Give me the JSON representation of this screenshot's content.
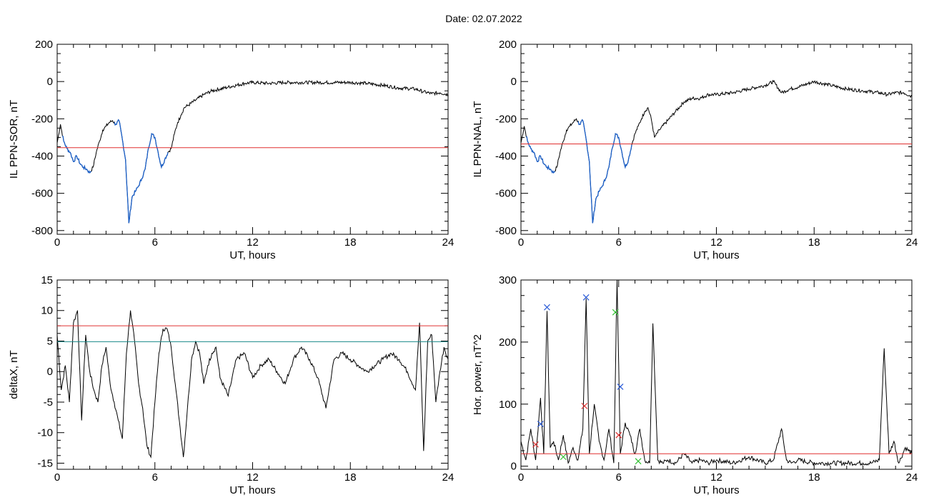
{
  "header": {
    "date_text": "Date:  02.07.2022"
  },
  "colors": {
    "trace": "#000000",
    "highlight": "#1a5fc8",
    "threshold_red": "#e03030",
    "threshold_teal": "#1a8a8a",
    "marker_blue": "#2a5bd7",
    "marker_red": "#e03030",
    "marker_green": "#30c030"
  },
  "chart_data": [
    {
      "type": "line",
      "ylabel": "IL PPN-SOR, nT",
      "xlabel": "UT, hours",
      "xlim": [
        0,
        24
      ],
      "ylim": [
        -820,
        200
      ],
      "xticks": [
        0,
        6,
        12,
        18,
        24
      ],
      "yticks": [
        -800,
        -600,
        -400,
        -200,
        0,
        200
      ],
      "x": [
        0,
        0.2,
        0.4,
        0.6,
        0.8,
        1.0,
        1.2,
        1.4,
        1.6,
        1.8,
        2.0,
        2.2,
        2.4,
        2.6,
        2.8,
        3.0,
        3.2,
        3.4,
        3.6,
        3.8,
        4.0,
        4.2,
        4.4,
        4.6,
        4.8,
        5.0,
        5.2,
        5.4,
        5.6,
        5.8,
        6.0,
        6.2,
        6.4,
        6.6,
        6.8,
        7.0,
        7.2,
        7.4,
        7.6,
        7.8,
        8.0,
        8.5,
        9.0,
        9.5,
        10.0,
        10.5,
        11.0,
        11.5,
        12.0,
        13.0,
        14.0,
        15.0,
        16.0,
        17.0,
        18.0,
        19.0,
        20.0,
        21.0,
        22.0,
        22.5,
        23.0,
        23.5,
        24.0
      ],
      "y": [
        -330,
        -230,
        -320,
        -360,
        -380,
        -430,
        -400,
        -440,
        -460,
        -470,
        -490,
        -460,
        -380,
        -320,
        -260,
        -240,
        -220,
        -210,
        -230,
        -210,
        -310,
        -420,
        -760,
        -620,
        -590,
        -560,
        -520,
        -470,
        -360,
        -280,
        -300,
        -380,
        -460,
        -420,
        -380,
        -360,
        -280,
        -220,
        -180,
        -140,
        -130,
        -100,
        -70,
        -50,
        -40,
        -30,
        -20,
        -10,
        -5,
        -10,
        -5,
        -5,
        -5,
        -5,
        -5,
        -10,
        -20,
        -35,
        -40,
        -55,
        -65,
        -60,
        -70
      ],
      "highlight": {
        "label": "",
        "x_ranges": [
          [
            0.3,
            2.1
          ],
          [
            3.5,
            6.8
          ]
        ]
      },
      "threshold_red": -355
    },
    {
      "type": "line",
      "ylabel": "IL PPN-NAL, nT",
      "xlabel": "UT, hours",
      "xlim": [
        0,
        24
      ],
      "ylim": [
        -820,
        200
      ],
      "xticks": [
        0,
        6,
        12,
        18,
        24
      ],
      "yticks": [
        -800,
        -600,
        -400,
        -200,
        0,
        200
      ],
      "x": [
        0,
        0.2,
        0.4,
        0.6,
        0.8,
        1.0,
        1.2,
        1.4,
        1.6,
        1.8,
        2.0,
        2.2,
        2.4,
        2.6,
        2.8,
        3.0,
        3.2,
        3.4,
        3.6,
        3.8,
        4.0,
        4.2,
        4.4,
        4.6,
        4.8,
        5.0,
        5.2,
        5.4,
        5.6,
        5.8,
        6.0,
        6.2,
        6.4,
        6.6,
        6.8,
        7.0,
        7.2,
        7.4,
        7.6,
        7.8,
        8.0,
        8.2,
        8.5,
        9.0,
        9.5,
        10.0,
        10.5,
        11.0,
        11.5,
        12.0,
        13.0,
        14.0,
        15.0,
        15.5,
        16.0,
        16.5,
        17.0,
        18.0,
        19.0,
        20.0,
        21.0,
        22.0,
        22.5,
        23.0,
        23.5,
        24.0
      ],
      "y": [
        -330,
        -240,
        -320,
        -360,
        -380,
        -430,
        -400,
        -440,
        -460,
        -470,
        -490,
        -460,
        -380,
        -320,
        -260,
        -240,
        -220,
        -200,
        -230,
        -210,
        -310,
        -430,
        -760,
        -630,
        -590,
        -560,
        -520,
        -460,
        -360,
        -280,
        -300,
        -380,
        -460,
        -420,
        -340,
        -280,
        -240,
        -200,
        -160,
        -140,
        -200,
        -300,
        -260,
        -210,
        -160,
        -110,
        -90,
        -90,
        -70,
        -70,
        -60,
        -40,
        -20,
        0,
        -60,
        -40,
        -30,
        0,
        -20,
        -40,
        -50,
        -60,
        -70,
        -60,
        -60,
        -80
      ],
      "highlight": {
        "label": "",
        "x_ranges": [
          [
            0.3,
            2.1
          ],
          [
            3.5,
            6.8
          ]
        ]
      },
      "threshold_red": -335
    },
    {
      "type": "line",
      "ylabel": "deltaX, nT",
      "xlabel": "UT, hours",
      "xlim": [
        0,
        24
      ],
      "ylim": [
        -16,
        15
      ],
      "xticks": [
        0,
        6,
        12,
        18,
        24
      ],
      "yticks": [
        -15,
        -10,
        -5,
        0,
        5,
        10,
        15
      ],
      "x": [
        0,
        0.25,
        0.5,
        0.75,
        1.0,
        1.25,
        1.5,
        1.75,
        2.0,
        2.25,
        2.5,
        2.75,
        3.0,
        3.25,
        3.5,
        3.75,
        4.0,
        4.25,
        4.5,
        4.75,
        5.0,
        5.25,
        5.5,
        5.75,
        6.0,
        6.25,
        6.5,
        6.75,
        7.0,
        7.25,
        7.5,
        7.75,
        8.0,
        8.25,
        8.5,
        8.75,
        9.0,
        9.25,
        9.5,
        9.75,
        10.0,
        10.5,
        11.0,
        11.5,
        12.0,
        12.5,
        13.0,
        13.5,
        14.0,
        14.5,
        15.0,
        15.5,
        16.0,
        16.5,
        17.0,
        17.5,
        18.0,
        18.5,
        19.0,
        19.5,
        20.0,
        20.5,
        21.0,
        21.5,
        22.0,
        22.25,
        22.5,
        22.75,
        23.0,
        23.25,
        23.5,
        23.75,
        24.0
      ],
      "y": [
        6,
        -3,
        1,
        -5,
        8,
        10,
        -8,
        6,
        0,
        -3,
        -5,
        1,
        4,
        -2,
        -5,
        -8,
        -11,
        3,
        10,
        5,
        -2,
        -6,
        -12,
        -14,
        -5,
        3,
        7,
        7,
        4,
        -2,
        -8,
        -14,
        -6,
        2,
        5,
        3,
        -2,
        1,
        3,
        4,
        -1,
        -4,
        2,
        3,
        -1,
        1,
        2,
        0,
        -2,
        2,
        4,
        2,
        -1,
        -6,
        2,
        3,
        2,
        1,
        0,
        1,
        2,
        3,
        2,
        0,
        -3,
        8,
        -13,
        5,
        6,
        -5,
        0,
        4,
        2
      ],
      "threshold_red": 7.5,
      "threshold_teal": 4.9
    },
    {
      "type": "line",
      "ylabel": "Hor. power, nT^2",
      "xlabel": "UT, hours",
      "xlim": [
        0,
        24
      ],
      "ylim": [
        -5,
        300
      ],
      "xticks": [
        0,
        6,
        12,
        18,
        24
      ],
      "yticks": [
        0,
        100,
        200,
        300
      ],
      "x": [
        0,
        0.3,
        0.6,
        0.9,
        1.2,
        1.4,
        1.6,
        1.8,
        2.0,
        2.3,
        2.6,
        2.9,
        3.2,
        3.5,
        3.8,
        4.0,
        4.2,
        4.5,
        4.8,
        5.1,
        5.4,
        5.7,
        5.9,
        6.1,
        6.4,
        6.7,
        7.0,
        7.3,
        7.6,
        7.9,
        8.1,
        8.4,
        8.7,
        9.0,
        9.5,
        10.0,
        10.5,
        11.0,
        11.5,
        12.0,
        13.0,
        14.0,
        15.0,
        15.5,
        16.0,
        16.3,
        16.6,
        17.0,
        18.0,
        19.0,
        20.0,
        21.0,
        21.5,
        22.0,
        22.3,
        22.6,
        22.9,
        23.2,
        23.6,
        24.0
      ],
      "y": [
        40,
        10,
        60,
        10,
        110,
        20,
        250,
        30,
        40,
        10,
        50,
        5,
        30,
        10,
        60,
        270,
        20,
        100,
        40,
        10,
        60,
        5,
        300,
        20,
        70,
        50,
        20,
        60,
        10,
        5,
        230,
        10,
        5,
        10,
        5,
        20,
        5,
        10,
        5,
        10,
        5,
        15,
        5,
        10,
        60,
        10,
        5,
        10,
        5,
        5,
        5,
        5,
        5,
        10,
        190,
        20,
        40,
        5,
        30,
        20
      ],
      "threshold_red": 20,
      "markers": [
        {
          "x": 0.9,
          "y": 35,
          "color": "red"
        },
        {
          "x": 1.2,
          "y": 68,
          "color": "blue"
        },
        {
          "x": 1.6,
          "y": 256,
          "color": "blue"
        },
        {
          "x": 2.6,
          "y": 15,
          "color": "green"
        },
        {
          "x": 4.0,
          "y": 272,
          "color": "blue"
        },
        {
          "x": 3.9,
          "y": 97,
          "color": "red"
        },
        {
          "x": 5.8,
          "y": 248,
          "color": "green"
        },
        {
          "x": 6.1,
          "y": 128,
          "color": "blue"
        },
        {
          "x": 6.0,
          "y": 50,
          "color": "red"
        },
        {
          "x": 7.2,
          "y": 8,
          "color": "green"
        }
      ]
    }
  ]
}
